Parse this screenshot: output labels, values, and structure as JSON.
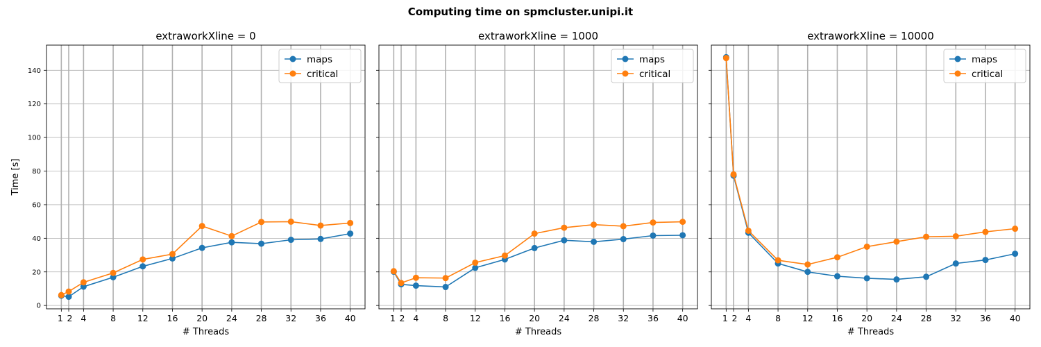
{
  "figure": {
    "title": "Computing time on spmcluster.unipi.it"
  },
  "chart_data": [
    {
      "type": "line",
      "title": "extraworkXline = 0",
      "xlabel": "# Threads",
      "ylabel": "Time [s]",
      "x": [
        1,
        2,
        4,
        8,
        12,
        16,
        20,
        24,
        28,
        32,
        36,
        40
      ],
      "xticks": [
        1,
        2,
        4,
        8,
        12,
        16,
        20,
        24,
        28,
        32,
        36,
        40
      ],
      "yticks": [
        0,
        20,
        40,
        60,
        80,
        100,
        120,
        140
      ],
      "ylim": [
        -2,
        155
      ],
      "grid": true,
      "legend": "top-right",
      "series": [
        {
          "name": "maps",
          "color": "#1f77b4",
          "values": [
            5.8,
            5.2,
            11.2,
            16.8,
            23.3,
            28.0,
            34.3,
            37.6,
            36.8,
            39.1,
            39.6,
            42.8
          ]
        },
        {
          "name": "critical",
          "color": "#ff7f0e",
          "values": [
            6.2,
            8.3,
            13.8,
            19.4,
            27.4,
            30.6,
            47.3,
            41.3,
            49.7,
            49.9,
            47.6,
            49.1
          ]
        }
      ]
    },
    {
      "type": "line",
      "title": "extraworkXline = 1000",
      "xlabel": "# Threads",
      "ylabel": "",
      "x": [
        1,
        2,
        4,
        8,
        12,
        16,
        20,
        24,
        28,
        32,
        36,
        40
      ],
      "xticks": [
        1,
        2,
        4,
        8,
        12,
        16,
        20,
        24,
        28,
        32,
        36,
        40
      ],
      "yticks": [
        0,
        20,
        40,
        60,
        80,
        100,
        120,
        140
      ],
      "ylim": [
        -2,
        155
      ],
      "grid": true,
      "legend": "top-right",
      "series": [
        {
          "name": "maps",
          "color": "#1f77b4",
          "values": [
            20.1,
            12.6,
            11.8,
            11.0,
            22.4,
            27.4,
            34.2,
            38.8,
            37.9,
            39.5,
            41.6,
            41.8
          ]
        },
        {
          "name": "critical",
          "color": "#ff7f0e",
          "values": [
            20.4,
            13.4,
            16.5,
            16.3,
            25.5,
            29.7,
            42.8,
            46.3,
            48.1,
            47.2,
            49.4,
            49.8
          ]
        }
      ]
    },
    {
      "type": "line",
      "title": "extraworkXline = 10000",
      "xlabel": "# Threads",
      "ylabel": "",
      "x": [
        1,
        2,
        4,
        8,
        12,
        16,
        20,
        24,
        28,
        32,
        36,
        40
      ],
      "xticks": [
        1,
        2,
        4,
        8,
        12,
        16,
        20,
        24,
        28,
        32,
        36,
        40
      ],
      "yticks": [
        0,
        20,
        40,
        60,
        80,
        100,
        120,
        140
      ],
      "ylim": [
        -2,
        155
      ],
      "grid": true,
      "legend": "top-right",
      "series": [
        {
          "name": "maps",
          "color": "#1f77b4",
          "values": [
            147.8,
            77.3,
            43.3,
            25.0,
            20.0,
            17.4,
            16.2,
            15.5,
            17.1,
            25.0,
            27.1,
            30.8
          ]
        },
        {
          "name": "critical",
          "color": "#ff7f0e",
          "values": [
            147.3,
            78.0,
            44.5,
            26.9,
            24.4,
            28.7,
            35.0,
            38.0,
            40.9,
            41.2,
            43.8,
            45.7
          ]
        }
      ]
    }
  ]
}
